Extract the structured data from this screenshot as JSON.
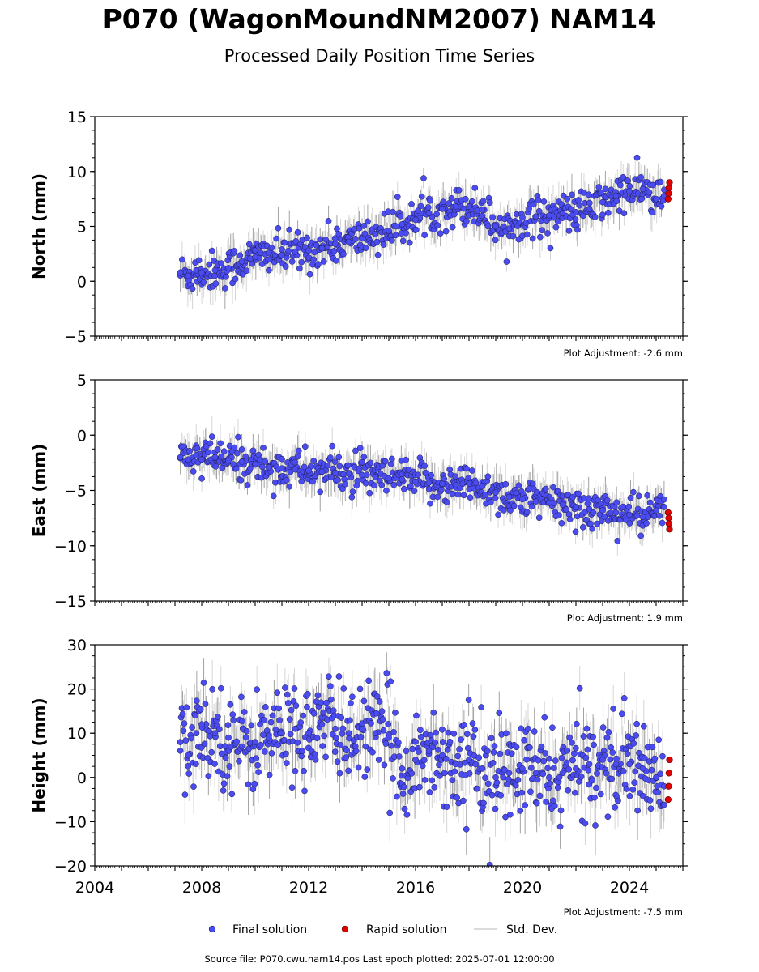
{
  "header": {
    "title": "P070 (WagonMoundNM2007) NAM14",
    "subtitle": "Processed Daily Position Time Series"
  },
  "footer": {
    "source": "Source file: P070.cwu.nam14.pos  Last epoch plotted: 2025-07-01 12:00:00"
  },
  "legend": {
    "final_label": "Final solution",
    "rapid_label": "Rapid solution",
    "std_label": "Std. Dev."
  },
  "colors": {
    "final_fill": "#4b4bf2",
    "final_edge": "#1a1a4a",
    "rapid_fill": "#e00000",
    "rapid_edge": "#600000",
    "std_dev": "#b5b5b5",
    "std_dev_dense": "#555555"
  },
  "chart_data": [
    {
      "type": "scatter",
      "ylabel": "North (mm)",
      "ylim": [
        -5,
        15
      ],
      "xlim": [
        2004.0,
        2026.0
      ],
      "yticks": [
        -5,
        0,
        5,
        10,
        15
      ],
      "adjustment_note": "Plot Adjustment: -2.6 mm",
      "series": [
        {
          "name": "Final solution",
          "x": [
            2007.2,
            2007.5,
            2007.8,
            2008.0,
            2008.5,
            2009.0,
            2009.5,
            2010.0,
            2010.5,
            2011.0,
            2011.5,
            2012.0,
            2012.5,
            2013.0,
            2013.5,
            2014.0,
            2014.5,
            2015.0,
            2015.5,
            2016.0,
            2016.5,
            2017.0,
            2017.5,
            2018.0,
            2018.5,
            2019.0,
            2019.5,
            2020.0,
            2020.5,
            2021.0,
            2021.5,
            2022.0,
            2022.5,
            2023.0,
            2023.5,
            2024.0,
            2024.5,
            2025.0,
            2025.3
          ],
          "y": [
            0.8,
            0.5,
            1.0,
            0.8,
            1.0,
            1.2,
            1.8,
            2.2,
            2.6,
            2.4,
            2.7,
            2.8,
            3.0,
            3.4,
            3.6,
            3.9,
            4.3,
            4.6,
            5.2,
            5.6,
            6.2,
            6.6,
            6.8,
            6.8,
            6.5,
            5.0,
            4.8,
            5.8,
            5.9,
            6.0,
            6.2,
            6.3,
            6.6,
            7.2,
            7.8,
            8.2,
            8.4,
            7.5,
            7.8
          ]
        },
        {
          "name": "Rapid solution",
          "x": [
            2025.45,
            2025.47,
            2025.48,
            2025.5
          ],
          "y": [
            7.5,
            8.0,
            8.5,
            9.0
          ]
        }
      ]
    },
    {
      "type": "scatter",
      "ylabel": "East (mm)",
      "ylim": [
        -15,
        5
      ],
      "xlim": [
        2004.0,
        2026.0
      ],
      "yticks": [
        -15,
        -10,
        -5,
        0,
        5
      ],
      "adjustment_note": "Plot Adjustment: 1.9 mm",
      "series": [
        {
          "name": "Final solution",
          "x": [
            2007.2,
            2007.5,
            2007.8,
            2008.0,
            2008.5,
            2009.0,
            2009.5,
            2010.0,
            2010.5,
            2011.0,
            2011.5,
            2012.0,
            2012.5,
            2013.0,
            2013.5,
            2014.0,
            2014.5,
            2015.0,
            2015.5,
            2016.0,
            2016.5,
            2017.0,
            2017.5,
            2018.0,
            2018.5,
            2019.0,
            2019.5,
            2020.0,
            2020.5,
            2021.0,
            2021.5,
            2022.0,
            2022.5,
            2023.0,
            2023.5,
            2024.0,
            2024.5,
            2025.0,
            2025.3
          ],
          "y": [
            -2.0,
            -2.2,
            -1.8,
            -2.2,
            -2.0,
            -2.3,
            -2.4,
            -2.6,
            -2.9,
            -3.0,
            -3.1,
            -3.2,
            -3.3,
            -3.4,
            -3.5,
            -3.6,
            -3.8,
            -3.9,
            -4.0,
            -4.2,
            -4.3,
            -4.4,
            -4.5,
            -4.4,
            -4.6,
            -5.2,
            -5.6,
            -5.8,
            -6.0,
            -6.1,
            -6.3,
            -6.5,
            -6.7,
            -6.8,
            -7.0,
            -7.2,
            -7.4,
            -6.8,
            -6.5
          ]
        },
        {
          "name": "Rapid solution",
          "x": [
            2025.45,
            2025.47,
            2025.48,
            2025.5
          ],
          "y": [
            -7.0,
            -7.5,
            -8.0,
            -8.5
          ]
        }
      ]
    },
    {
      "type": "scatter",
      "ylabel": "Height (mm)",
      "ylim": [
        -20,
        30
      ],
      "xlim": [
        2004.0,
        2026.0
      ],
      "yticks": [
        -20,
        -10,
        0,
        10,
        20,
        30
      ],
      "xticks": [
        2004,
        2008,
        2012,
        2016,
        2020,
        2024
      ],
      "adjustment_note": "Plot Adjustment: -7.5 mm",
      "series": [
        {
          "name": "Final solution",
          "x": [
            2007.2,
            2007.5,
            2007.8,
            2008.0,
            2008.5,
            2009.0,
            2009.5,
            2010.0,
            2010.5,
            2011.0,
            2011.5,
            2012.0,
            2012.5,
            2013.0,
            2013.5,
            2014.0,
            2014.5,
            2015.0,
            2015.5,
            2016.0,
            2016.5,
            2017.0,
            2017.5,
            2018.0,
            2018.5,
            2019.0,
            2019.5,
            2020.0,
            2020.5,
            2021.0,
            2021.5,
            2022.0,
            2022.5,
            2023.0,
            2023.5,
            2024.0,
            2024.5,
            2025.0,
            2025.3
          ],
          "y": [
            8,
            5,
            10,
            12,
            10,
            9,
            7,
            8,
            9,
            10,
            11,
            10,
            12,
            11,
            10,
            11,
            10,
            9,
            2,
            4,
            6,
            5,
            3,
            4,
            2,
            0,
            1,
            2,
            1,
            0,
            1,
            2,
            3,
            4,
            3,
            3,
            2,
            0,
            -2
          ]
        },
        {
          "name": "Rapid solution",
          "x": [
            2025.45,
            2025.47,
            2025.48,
            2025.5
          ],
          "y": [
            -5,
            -2,
            1,
            4
          ]
        }
      ]
    }
  ]
}
